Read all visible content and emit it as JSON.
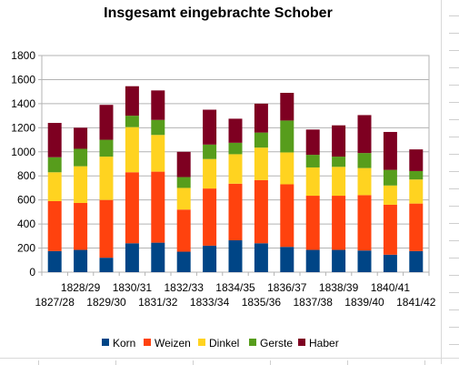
{
  "chart_data": {
    "type": "bar",
    "stacked": true,
    "title": "Insgesamt eingebrachte Schober",
    "xlabel": "",
    "ylabel": "",
    "ylim": [
      0,
      1800
    ],
    "yticks": [
      0,
      200,
      400,
      600,
      800,
      1000,
      1200,
      1400,
      1600,
      1800
    ],
    "grid": true,
    "legend_position": "bottom",
    "categories": [
      "1827/28",
      "1828/29",
      "1829/30",
      "1830/31",
      "1831/32",
      "1832/33",
      "1833/34",
      "1834/35",
      "1835/36",
      "1836/37",
      "1837/38",
      "1838/39",
      "1839/40",
      "1840/41",
      "1841/42"
    ],
    "series": [
      {
        "name": "Korn",
        "color": "#004586",
        "values": [
          175,
          185,
          120,
          240,
          245,
          170,
          220,
          265,
          240,
          210,
          185,
          185,
          180,
          145,
          175
        ]
      },
      {
        "name": "Weizen",
        "color": "#ff420e",
        "values": [
          415,
          390,
          480,
          590,
          590,
          350,
          475,
          470,
          525,
          520,
          450,
          450,
          460,
          415,
          395
        ]
      },
      {
        "name": "Dinkel",
        "color": "#ffd320",
        "values": [
          240,
          305,
          360,
          375,
          305,
          180,
          245,
          245,
          270,
          265,
          235,
          240,
          225,
          160,
          200
        ]
      },
      {
        "name": "Gerste",
        "color": "#579d1c",
        "values": [
          125,
          145,
          140,
          95,
          125,
          90,
          120,
          95,
          125,
          265,
          105,
          85,
          125,
          130,
          70
        ]
      },
      {
        "name": "Haber",
        "color": "#7e0021",
        "values": [
          285,
          175,
          290,
          245,
          245,
          210,
          290,
          200,
          240,
          230,
          210,
          260,
          315,
          315,
          180
        ]
      }
    ]
  }
}
